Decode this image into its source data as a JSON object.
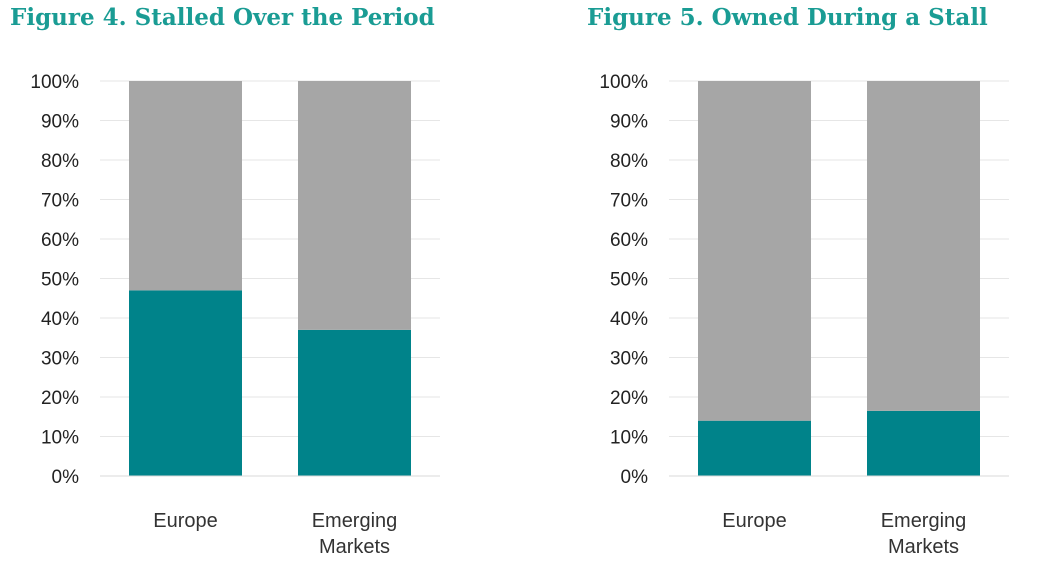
{
  "colors": {
    "share": "#00838a",
    "remainder": "#a6a6a6",
    "title": "#1a9c94",
    "grid": "#e6e6e6"
  },
  "chart_data": [
    {
      "type": "bar",
      "stacked": true,
      "title": "Figure 4. Stalled Over the Period",
      "categories": [
        [
          "Europe"
        ],
        [
          "Emerging",
          "Markets"
        ]
      ],
      "series": [
        {
          "values": [
            47,
            37
          ]
        },
        {
          "values": [
            53,
            63
          ]
        }
      ],
      "ylim": [
        0,
        100
      ],
      "yticks": [
        "0%",
        "10%",
        "20%",
        "30%",
        "40%",
        "50%",
        "60%",
        "70%",
        "80%",
        "90%",
        "100%"
      ],
      "grid": true
    },
    {
      "type": "bar",
      "stacked": true,
      "title": "Figure 5. Owned During a Stall",
      "categories": [
        [
          "Europe"
        ],
        [
          "Emerging",
          "Markets"
        ]
      ],
      "series": [
        {
          "values": [
            14,
            16.5
          ]
        },
        {
          "values": [
            86,
            83.5
          ]
        }
      ],
      "ylim": [
        0,
        100
      ],
      "yticks": [
        "0%",
        "10%",
        "20%",
        "30%",
        "40%",
        "50%",
        "60%",
        "70%",
        "80%",
        "90%",
        "100%"
      ],
      "grid": true
    }
  ]
}
